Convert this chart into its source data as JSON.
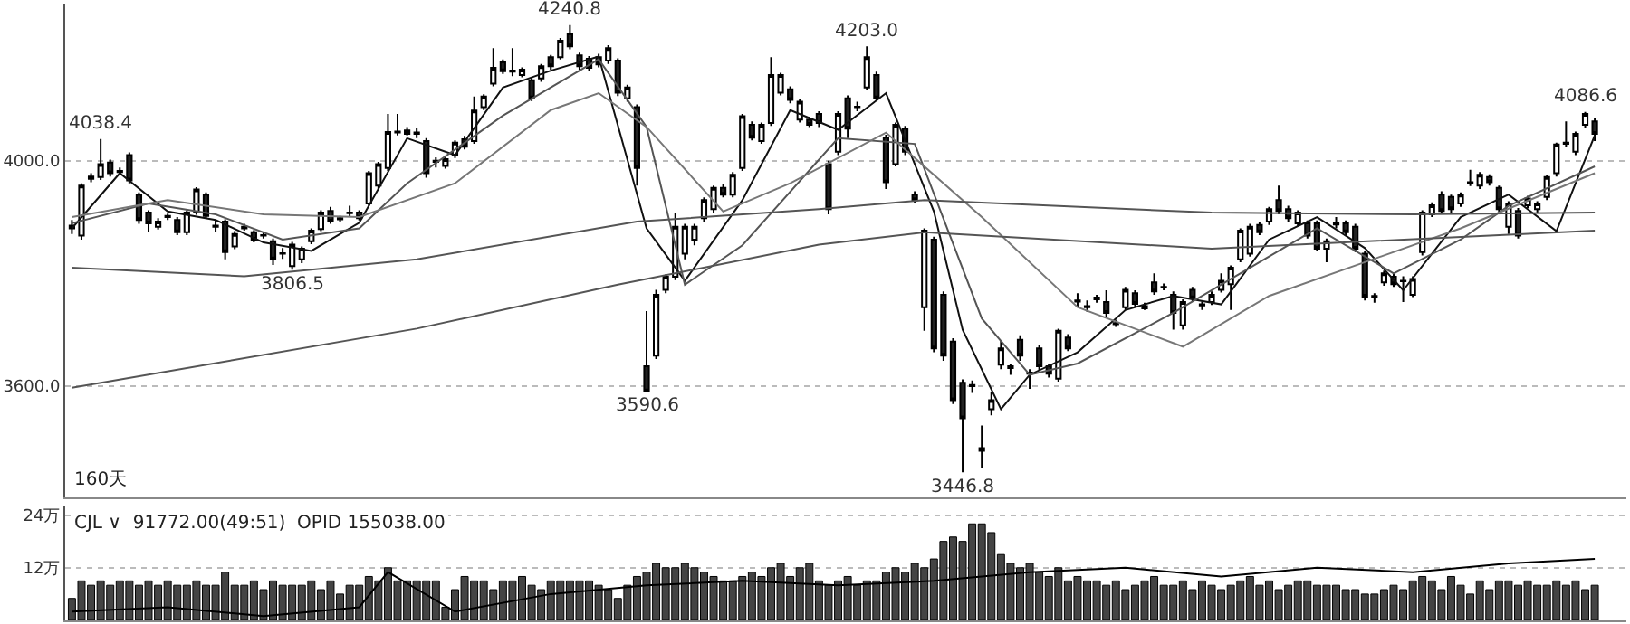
{
  "chart_data": [
    {
      "type": "candlestick",
      "tick_labels": "y",
      "grid": "y",
      "categories": [
        null,
        null,
        null,
        null,
        null,
        null,
        null,
        null,
        null,
        null,
        null,
        null,
        null,
        null,
        null,
        null,
        null,
        null,
        null,
        null,
        null,
        null,
        null,
        null,
        null,
        null,
        null,
        null,
        null,
        null,
        null,
        null,
        null,
        null,
        null,
        null,
        null,
        null,
        null,
        null,
        null,
        null,
        null,
        null,
        null,
        null,
        null,
        null,
        null,
        null,
        null,
        null,
        null,
        null,
        null,
        null,
        null,
        null,
        null,
        null,
        null,
        null,
        null,
        null,
        null,
        null,
        null,
        null,
        null,
        null,
        null,
        null,
        null,
        null,
        null,
        null,
        null,
        null,
        null,
        null,
        null,
        null,
        null,
        null,
        null,
        null,
        null,
        null,
        null,
        null,
        null,
        null,
        null,
        null,
        null,
        null,
        null,
        null,
        null,
        null,
        null,
        null,
        null,
        null,
        null,
        null,
        null,
        null,
        null,
        null,
        null,
        null,
        null,
        null,
        null,
        null,
        null,
        null,
        null,
        null,
        null,
        null,
        null,
        null,
        null,
        null,
        null,
        null,
        null,
        null,
        null,
        null,
        null,
        null,
        null,
        null,
        null,
        null,
        null,
        null,
        null,
        null,
        null,
        null,
        null,
        null,
        null,
        null,
        null,
        null,
        null,
        null,
        null,
        null,
        null,
        null,
        null,
        null,
        null,
        null
      ],
      "ohlc": [
        [
          3880,
          3895,
          3870,
          3885
        ],
        [
          3867,
          3960,
          3860,
          3956
        ],
        [
          3968,
          3978,
          3962,
          3972
        ],
        [
          3971,
          4038.4,
          3966,
          3994
        ],
        [
          3997,
          4002,
          3972,
          3978
        ],
        [
          3982,
          3988,
          3975,
          3980
        ],
        [
          4010,
          4015,
          3960,
          3965
        ],
        [
          3940,
          3944,
          3888,
          3895
        ],
        [
          3908,
          3912,
          3873,
          3889
        ],
        [
          3883,
          3898,
          3878,
          3892
        ],
        [
          3900,
          3906,
          3895,
          3902
        ],
        [
          3895,
          3900,
          3868,
          3873
        ],
        [
          3873,
          3912,
          3868,
          3908
        ],
        [
          3908,
          3953,
          3904,
          3949
        ],
        [
          3940,
          3944,
          3898,
          3902
        ],
        [
          3885,
          3895,
          3873,
          3883
        ],
        [
          3892,
          3896,
          3825,
          3838
        ],
        [
          3848,
          3875,
          3843,
          3870
        ],
        [
          3880,
          3888,
          3876,
          3883
        ],
        [
          3873,
          3877,
          3855,
          3860
        ],
        [
          3868,
          3874,
          3862,
          3867
        ],
        [
          3857,
          3862,
          3815,
          3825
        ],
        [
          3836,
          3845,
          3826,
          3835
        ],
        [
          3813,
          3856,
          3806.5,
          3851
        ],
        [
          3825,
          3848,
          3818,
          3844
        ],
        [
          3857,
          3880,
          3852,
          3876
        ],
        [
          3879,
          3912,
          3875,
          3908
        ],
        [
          3911,
          3918,
          3888,
          3892
        ],
        [
          3896,
          3902,
          3892,
          3898
        ],
        [
          3907,
          3920,
          3900,
          3908
        ],
        [
          3908,
          3912,
          3894,
          3898
        ],
        [
          3924,
          3982,
          3920,
          3978
        ],
        [
          3956,
          3998,
          3950,
          3994
        ],
        [
          3987,
          4083,
          3982,
          4051
        ],
        [
          4050,
          4083,
          4045,
          4052
        ],
        [
          4054,
          4060,
          4045,
          4048
        ],
        [
          4048,
          4058,
          4040,
          4050
        ],
        [
          4035,
          4040,
          3970,
          3978
        ],
        [
          3998,
          4006,
          3988,
          4000
        ],
        [
          3991,
          4008,
          3986,
          4003
        ],
        [
          4010,
          4036,
          4005,
          4032
        ],
        [
          4038,
          4044,
          4020,
          4025
        ],
        [
          4035,
          4114,
          4030,
          4089
        ],
        [
          4095,
          4118,
          4090,
          4114
        ],
        [
          4137,
          4200,
          4132,
          4165
        ],
        [
          4175,
          4180,
          4154,
          4159
        ],
        [
          4158,
          4200,
          4150,
          4160
        ],
        [
          4152,
          4166,
          4148,
          4162
        ],
        [
          4143,
          4148,
          4106,
          4111
        ],
        [
          4146,
          4172,
          4140,
          4168
        ],
        [
          4184,
          4188,
          4162,
          4168
        ],
        [
          4184,
          4218,
          4180,
          4213
        ],
        [
          4225,
          4240.8,
          4198,
          4203
        ],
        [
          4187,
          4192,
          4162,
          4168
        ],
        [
          4181,
          4186,
          4160,
          4165
        ],
        [
          4184,
          4190,
          4166,
          4171
        ],
        [
          4178,
          4205,
          4172,
          4200
        ],
        [
          4178,
          4182,
          4115,
          4121
        ],
        [
          4111,
          4135,
          4105,
          4130
        ],
        [
          4095,
          4100,
          3956,
          3987
        ],
        [
          3635,
          3733,
          3590.6,
          3590.6
        ],
        [
          3654,
          3771,
          3648,
          3762
        ],
        [
          3771,
          3798,
          3765,
          3794
        ],
        [
          3794,
          3908,
          3788,
          3883
        ],
        [
          3835,
          3888,
          3825,
          3883
        ],
        [
          3860,
          3888,
          3850,
          3883
        ],
        [
          3898,
          3935,
          3892,
          3930
        ],
        [
          3914,
          3956,
          3908,
          3952
        ],
        [
          3952,
          3958,
          3935,
          3940
        ],
        [
          3940,
          3980,
          3935,
          3975
        ],
        [
          3987,
          4083,
          3982,
          4079
        ],
        [
          4064,
          4070,
          4036,
          4041
        ],
        [
          4035,
          4068,
          4030,
          4064
        ],
        [
          4067,
          4184,
          4062,
          4152
        ],
        [
          4121,
          4156,
          4116,
          4152
        ],
        [
          4127,
          4132,
          4102,
          4108
        ],
        [
          4073,
          4110,
          4068,
          4105
        ],
        [
          4073,
          4078,
          4060,
          4064
        ],
        [
          4083,
          4088,
          4060,
          4067
        ],
        [
          3994,
          4000,
          3905,
          3914
        ],
        [
          4016,
          4088,
          4010,
          4083
        ],
        [
          4111,
          4116,
          4040,
          4057
        ],
        [
          4095,
          4105,
          4088,
          4096
        ],
        [
          4130,
          4203.0,
          4125,
          4184
        ],
        [
          4152,
          4158,
          4106,
          4111
        ],
        [
          4041,
          4046,
          3950,
          3962
        ],
        [
          3994,
          4068,
          3990,
          4064
        ],
        [
          4057,
          4062,
          4010,
          4016
        ],
        [
          3940,
          3946,
          3924,
          3930
        ],
        [
          3740,
          3880,
          3698,
          3876
        ],
        [
          3860,
          3865,
          3660,
          3667
        ],
        [
          3762,
          3768,
          3645,
          3654
        ],
        [
          3679,
          3685,
          3568,
          3575
        ],
        [
          3606,
          3612,
          3446.8,
          3543
        ],
        [
          3600,
          3610,
          3588,
          3602
        ],
        [
          3490,
          3530,
          3455,
          3485
        ],
        [
          3559,
          3590,
          3548,
          3575
        ],
        [
          3638,
          3680,
          3630,
          3667
        ],
        [
          3632,
          3640,
          3620,
          3635
        ],
        [
          3682,
          3690,
          3645,
          3654
        ],
        [
          3622,
          3630,
          3595,
          3624
        ],
        [
          3667,
          3672,
          3628,
          3635
        ],
        [
          3635,
          3640,
          3615,
          3622
        ],
        [
          3613,
          3702,
          3608,
          3698
        ],
        [
          3686,
          3692,
          3662,
          3667
        ],
        [
          3750,
          3765,
          3740,
          3752
        ],
        [
          3742,
          3752,
          3732,
          3740
        ],
        [
          3754,
          3762,
          3748,
          3757
        ],
        [
          3749,
          3770,
          3722,
          3730
        ],
        [
          3712,
          3718,
          3705,
          3710
        ],
        [
          3740,
          3776,
          3735,
          3771
        ],
        [
          3765,
          3770,
          3740,
          3746
        ],
        [
          3742,
          3748,
          3735,
          3738
        ],
        [
          3784,
          3800,
          3762,
          3768
        ],
        [
          3776,
          3782,
          3770,
          3775
        ],
        [
          3762,
          3768,
          3700,
          3730
        ],
        [
          3708,
          3754,
          3700,
          3749
        ],
        [
          3771,
          3776,
          3750,
          3756
        ],
        [
          3745,
          3750,
          3735,
          3743
        ],
        [
          3749,
          3768,
          3744,
          3762
        ],
        [
          3771,
          3800,
          3766,
          3787
        ],
        [
          3781,
          3814,
          3735,
          3810
        ],
        [
          3825,
          3880,
          3820,
          3876
        ],
        [
          3835,
          3888,
          3830,
          3883
        ],
        [
          3886,
          3892,
          3868,
          3873
        ],
        [
          3892,
          3918,
          3886,
          3914
        ],
        [
          3930,
          3956,
          3905,
          3911
        ],
        [
          3914,
          3920,
          3892,
          3898
        ],
        [
          3889,
          3912,
          3884,
          3908
        ],
        [
          3889,
          3894,
          3862,
          3867
        ],
        [
          3889,
          3894,
          3840,
          3844
        ],
        [
          3844,
          3862,
          3820,
          3857
        ],
        [
          3887,
          3900,
          3880,
          3889
        ],
        [
          3889,
          3894,
          3868,
          3873
        ],
        [
          3883,
          3888,
          3838,
          3844
        ],
        [
          3835,
          3840,
          3752,
          3759
        ],
        [
          3760,
          3765,
          3748,
          3758
        ],
        [
          3784,
          3805,
          3778,
          3800
        ],
        [
          3794,
          3800,
          3776,
          3781
        ],
        [
          3787,
          3795,
          3749,
          3786
        ],
        [
          3762,
          3795,
          3758,
          3790
        ],
        [
          3838,
          3912,
          3832,
          3908
        ],
        [
          3905,
          3926,
          3900,
          3921
        ],
        [
          3940,
          3946,
          3906,
          3911
        ],
        [
          3936,
          3940,
          3908,
          3914
        ],
        [
          3924,
          3944,
          3918,
          3940
        ],
        [
          3960,
          3984,
          3955,
          3962
        ],
        [
          3956,
          3980,
          3950,
          3975
        ],
        [
          3971,
          3976,
          3956,
          3962
        ],
        [
          3952,
          3956,
          3908,
          3914
        ],
        [
          3883,
          3928,
          3870,
          3924
        ],
        [
          3911,
          3916,
          3862,
          3867
        ],
        [
          3921,
          3938,
          3916,
          3933
        ],
        [
          3914,
          3928,
          3908,
          3924
        ],
        [
          3936,
          3975,
          3930,
          3971
        ],
        [
          3978,
          4032,
          3972,
          4029
        ],
        [
          4030,
          4070,
          4025,
          4032
        ],
        [
          4016,
          4052,
          4010,
          4048
        ],
        [
          4064,
          4086.6,
          4058,
          4083
        ],
        [
          4070,
          4076,
          4035,
          4048
        ]
      ],
      "series": [
        {
          "type": "line",
          "color": "#111111",
          "values": [
            3880,
            null,
            null,
            null,
            null,
            3978,
            null,
            null,
            null,
            null,
            3910,
            null,
            null,
            null,
            null,
            3895,
            null,
            null,
            null,
            null,
            3855,
            null,
            null,
            null,
            null,
            3840,
            null,
            null,
            null,
            null,
            3890,
            null,
            null,
            null,
            null,
            4040,
            null,
            null,
            null,
            null,
            4010,
            null,
            null,
            null,
            null,
            4130,
            null,
            null,
            null,
            null,
            4160,
            null,
            null,
            null,
            null,
            4185,
            null,
            null,
            null,
            null,
            3880,
            null,
            null,
            null,
            3787,
            null,
            null,
            null,
            null,
            null,
            3930,
            null,
            null,
            null,
            null,
            4090,
            null,
            null,
            null,
            null,
            4055,
            null,
            null,
            null,
            null,
            4120,
            null,
            null,
            null,
            null,
            3910,
            null,
            null,
            3700,
            null,
            null,
            null,
            3559,
            null,
            null,
            3620,
            null,
            null,
            null,
            null,
            3660,
            null,
            null,
            null,
            null,
            3735,
            null,
            null,
            null,
            null,
            3760,
            null,
            null,
            null,
            null,
            3745,
            null,
            null,
            null,
            null,
            3860,
            null,
            null,
            null,
            null,
            3900,
            null,
            null,
            null,
            null,
            3845,
            null,
            null,
            null,
            3770,
            null,
            null,
            null,
            null,
            null,
            3900,
            null,
            null,
            null,
            null,
            3940,
            null,
            null,
            null,
            null,
            3875,
            null,
            null,
            null,
            4045
          ]
        },
        {
          "type": "line",
          "color": "#555555",
          "values": [
            3889,
            null,
            null,
            null,
            null,
            null,
            null,
            null,
            3924,
            null,
            null,
            null,
            null,
            null,
            null,
            3905,
            null,
            null,
            null,
            null,
            null,
            null,
            3860,
            null,
            null,
            null,
            null,
            null,
            null,
            null,
            3880,
            null,
            null,
            null,
            null,
            3960,
            null,
            null,
            null,
            null,
            null,
            null,
            null,
            null,
            null,
            4080,
            null,
            null,
            null,
            null,
            null,
            null,
            null,
            null,
            null,
            4180,
            null,
            null,
            null,
            null,
            4060,
            null,
            null,
            null,
            3780,
            null,
            null,
            null,
            null,
            null,
            3850,
            null,
            null,
            null,
            null,
            null,
            null,
            null,
            null,
            null,
            4040,
            null,
            null,
            null,
            null,
            null,
            null,
            null,
            4030,
            null,
            null,
            null,
            null,
            null,
            null,
            3720,
            null,
            null,
            null,
            null,
            3620,
            null,
            null,
            null,
            null,
            3640,
            null,
            null,
            null,
            null,
            null,
            null,
            null,
            null,
            null,
            3730,
            null,
            null,
            null,
            null,
            null,
            null,
            null,
            null,
            null,
            3830,
            null,
            null,
            null,
            null,
            3880,
            null,
            null,
            null,
            null,
            null,
            null,
            null,
            3800,
            null,
            null,
            null,
            null,
            null,
            null,
            3860,
            null,
            null,
            null,
            null,
            3920,
            null,
            null,
            null,
            null,
            null,
            null,
            null,
            null,
            3990
          ]
        },
        {
          "type": "line",
          "color": "#777777",
          "values": [
            3900,
            null,
            null,
            null,
            null,
            null,
            null,
            null,
            null,
            null,
            3930,
            null,
            null,
            null,
            null,
            null,
            null,
            null,
            null,
            null,
            3905,
            null,
            null,
            null,
            null,
            null,
            null,
            null,
            null,
            null,
            3900,
            null,
            null,
            null,
            null,
            null,
            null,
            null,
            null,
            null,
            3960,
            null,
            null,
            null,
            null,
            null,
            null,
            null,
            null,
            null,
            4090,
            null,
            null,
            null,
            null,
            4120,
            null,
            null,
            null,
            null,
            4060,
            null,
            null,
            null,
            null,
            null,
            null,
            null,
            3910,
            null,
            null,
            null,
            null,
            null,
            null,
            3960,
            null,
            null,
            null,
            null,
            null,
            null,
            null,
            null,
            null,
            4050,
            null,
            null,
            null,
            null,
            null,
            null,
            null,
            null,
            null,
            3900,
            null,
            null,
            null,
            null,
            null,
            null,
            null,
            null,
            null,
            3740,
            null,
            null,
            null,
            null,
            null,
            null,
            null,
            null,
            null,
            null,
            3670,
            null,
            null,
            null,
            null,
            null,
            null,
            null,
            null,
            3760,
            null,
            null,
            null,
            null,
            null,
            null,
            null,
            null,
            null,
            3820,
            null,
            null,
            null,
            null,
            null,
            null,
            null,
            null,
            null,
            3880,
            null,
            null,
            null,
            null,
            null,
            null,
            null,
            null,
            null,
            null,
            null,
            null,
            null,
            3978
          ]
        },
        {
          "type": "line",
          "color": "#555555",
          "values": [
            3810,
            null,
            null,
            null,
            null,
            null,
            null,
            null,
            null,
            null,
            null,
            null,
            null,
            null,
            null,
            null,
            null,
            null,
            3795,
            null,
            null,
            null,
            null,
            null,
            null,
            null,
            null,
            null,
            null,
            null,
            null,
            null,
            null,
            null,
            null,
            null,
            3825,
            null,
            null,
            null,
            null,
            null,
            null,
            null,
            null,
            null,
            null,
            null,
            null,
            null,
            null,
            null,
            null,
            null,
            null,
            null,
            null,
            null,
            null,
            3892,
            null,
            null,
            null,
            null,
            null,
            null,
            null,
            null,
            null,
            null,
            null,
            null,
            null,
            null,
            null,
            null,
            null,
            null,
            3914,
            null,
            null,
            null,
            null,
            null,
            null,
            null,
            null,
            null,
            null,
            3930,
            null,
            null,
            null,
            null,
            null,
            null,
            null,
            null,
            null,
            null,
            null,
            null,
            null,
            null,
            null,
            null,
            null,
            null,
            null,
            null,
            null,
            null,
            null,
            null,
            null,
            null,
            null,
            null,
            null,
            3908,
            null,
            null,
            null,
            null,
            null,
            null,
            null,
            null,
            null,
            null,
            null,
            null,
            null,
            null,
            null,
            null,
            null,
            null,
            null,
            null,
            3905,
            null,
            null,
            null,
            null,
            null,
            null,
            null,
            null,
            null,
            null,
            null,
            null,
            null,
            null,
            null,
            null,
            null,
            null,
            3908
          ]
        },
        {
          "type": "line",
          "color": "#555555",
          "values": [
            3597,
            null,
            null,
            null,
            null,
            null,
            null,
            null,
            null,
            null,
            null,
            null,
            null,
            null,
            null,
            null,
            null,
            null,
            null,
            null,
            null,
            null,
            null,
            null,
            null,
            null,
            null,
            null,
            null,
            null,
            null,
            null,
            null,
            null,
            null,
            null,
            3702,
            null,
            null,
            null,
            null,
            null,
            null,
            null,
            null,
            null,
            null,
            null,
            null,
            null,
            null,
            null,
            null,
            null,
            null,
            null,
            null,
            3780,
            null,
            null,
            null,
            null,
            null,
            null,
            null,
            null,
            null,
            null,
            null,
            null,
            null,
            null,
            null,
            null,
            null,
            null,
            null,
            null,
            3851,
            null,
            null,
            null,
            null,
            null,
            null,
            null,
            null,
            null,
            null,
            3873,
            null,
            null,
            null,
            null,
            null,
            null,
            null,
            null,
            null,
            null,
            null,
            null,
            null,
            null,
            null,
            null,
            null,
            null,
            null,
            null,
            null,
            null,
            null,
            null,
            null,
            null,
            null,
            null,
            null,
            3844,
            null,
            null,
            null,
            null,
            null,
            null,
            null,
            null,
            null,
            null,
            null,
            null,
            null,
            null,
            null,
            null,
            null,
            null,
            null,
            null,
            null,
            null,
            null,
            null,
            null,
            null,
            null,
            null,
            null,
            null,
            null,
            null,
            null,
            null,
            null,
            null,
            null,
            null,
            null,
            3876
          ]
        }
      ],
      "ylim": [
        3403,
        4279
      ],
      "yticks": [
        {
          "value": 3600,
          "label": "3600.0"
        },
        {
          "value": 4000,
          "label": "4000.0"
        }
      ],
      "annotations": [
        {
          "text": "4038.4",
          "y": 4038.4
        },
        {
          "text": "3806.5",
          "y": 3806.5
        },
        {
          "text": "4240.8",
          "y": 4240.8
        },
        {
          "text": "3590.6",
          "y": 3590.6
        },
        {
          "text": "4203.0",
          "y": 4203.0
        },
        {
          "text": "3446.8",
          "y": 3446.8
        },
        {
          "text": "4086.6",
          "y": 4086.6
        },
        "160天"
      ]
    },
    {
      "type": "bar",
      "tick_labels": "y",
      "grid": "y",
      "categories": [
        null,
        null,
        null,
        null,
        null,
        null,
        null,
        null,
        null,
        null,
        null,
        null,
        null,
        null,
        null,
        null,
        null,
        null,
        null,
        null,
        null,
        null,
        null,
        null,
        null,
        null,
        null,
        null,
        null,
        null,
        null,
        null,
        null,
        null,
        null,
        null,
        null,
        null,
        null,
        null,
        null,
        null,
        null,
        null,
        null,
        null,
        null,
        null,
        null,
        null,
        null,
        null,
        null,
        null,
        null,
        null,
        null,
        null,
        null,
        null,
        null,
        null,
        null,
        null,
        null,
        null,
        null,
        null,
        null,
        null,
        null,
        null,
        null,
        null,
        null,
        null,
        null,
        null,
        null,
        null,
        null,
        null,
        null,
        null,
        null,
        null,
        null,
        null,
        null,
        null,
        null,
        null,
        null,
        null,
        null,
        null,
        null,
        null,
        null,
        null,
        null,
        null,
        null,
        null,
        null,
        null,
        null,
        null,
        null,
        null,
        null,
        null,
        null,
        null,
        null,
        null,
        null,
        null,
        null,
        null,
        null,
        null,
        null,
        null,
        null,
        null,
        null,
        null,
        null,
        null,
        null,
        null,
        null,
        null,
        null,
        null,
        null,
        null,
        null,
        null,
        null,
        null,
        null,
        null,
        null,
        null,
        null,
        null,
        null,
        null,
        null,
        null,
        null,
        null,
        null,
        null,
        null,
        null,
        null,
        null
      ],
      "series": [
        {
          "type": "bar",
          "color": "#444444",
          "values": [
            5,
            9,
            8,
            9,
            8,
            9,
            9,
            8,
            9,
            8,
            9,
            8,
            8,
            9,
            8,
            8,
            11,
            8,
            8,
            9,
            7,
            9,
            8,
            8,
            8,
            9,
            7,
            9,
            6,
            8,
            8,
            10,
            9,
            12,
            9,
            9,
            9,
            9,
            9,
            3,
            7,
            10,
            9,
            9,
            7,
            9,
            9,
            10,
            8,
            7,
            9,
            9,
            9,
            9,
            9,
            8,
            7,
            5,
            8,
            10,
            11,
            13,
            12,
            12,
            13,
            12,
            11,
            10,
            9,
            9,
            10,
            11,
            10,
            12,
            13,
            10,
            12,
            13,
            9,
            8,
            9,
            10,
            8,
            9,
            9,
            11,
            12,
            11,
            13,
            12,
            14,
            18,
            19,
            18,
            22,
            22,
            20,
            15,
            13,
            12,
            13,
            11,
            10,
            12,
            9,
            10,
            9,
            9,
            8,
            9,
            7,
            8,
            9,
            10,
            8,
            8,
            9,
            7,
            9,
            8,
            7,
            8,
            9,
            10,
            8,
            9,
            7,
            8,
            9,
            9,
            8,
            8,
            8,
            7,
            7,
            6,
            6,
            7,
            8,
            7,
            9,
            10,
            9,
            7,
            10,
            8,
            6,
            9,
            7,
            9,
            9,
            8,
            9,
            8,
            8,
            9,
            8,
            9,
            7,
            8
          ]
        },
        {
          "type": "line",
          "color": "#000000",
          "values": [
            2,
            null,
            null,
            null,
            null,
            null,
            null,
            null,
            null,
            null,
            3,
            null,
            null,
            null,
            null,
            null,
            null,
            null,
            null,
            null,
            1,
            null,
            null,
            null,
            null,
            null,
            null,
            null,
            null,
            null,
            3,
            null,
            null,
            11,
            null,
            null,
            null,
            null,
            null,
            null,
            2,
            null,
            null,
            null,
            null,
            null,
            null,
            null,
            null,
            null,
            6,
            null,
            null,
            null,
            null,
            null,
            null,
            null,
            null,
            null,
            8,
            null,
            null,
            null,
            null,
            null,
            null,
            null,
            null,
            null,
            9,
            null,
            null,
            null,
            null,
            null,
            null,
            null,
            null,
            null,
            8,
            null,
            null,
            null,
            null,
            null,
            null,
            null,
            null,
            null,
            9,
            null,
            null,
            null,
            null,
            null,
            null,
            null,
            null,
            null,
            11,
            null,
            null,
            null,
            null,
            null,
            null,
            null,
            null,
            null,
            12,
            null,
            null,
            null,
            null,
            null,
            null,
            null,
            null,
            null,
            10,
            null,
            null,
            null,
            null,
            null,
            null,
            null,
            null,
            null,
            12,
            null,
            null,
            null,
            null,
            null,
            null,
            null,
            null,
            null,
            11,
            null,
            null,
            null,
            null,
            null,
            null,
            null,
            null,
            null,
            13,
            null,
            null,
            null,
            null,
            null,
            null,
            null,
            null,
            14
          ]
        }
      ],
      "ylim": [
        0,
        26
      ],
      "yticks": [
        {
          "value": 12,
          "label": "12万"
        },
        {
          "value": 24,
          "label": "24万"
        }
      ],
      "annotations": [
        "CJL ∨  91772.00(49:51)  OPID 155038.00"
      ]
    }
  ]
}
